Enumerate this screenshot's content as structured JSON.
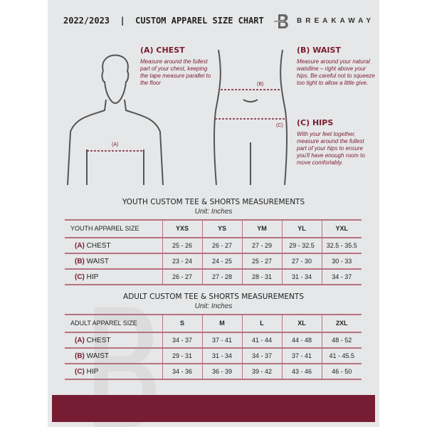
{
  "header": {
    "title": "2022/2023  |  CUSTOM APPAREL SIZE CHART",
    "brand": "BREAKAWAY",
    "logo_letter": "B"
  },
  "guides": {
    "chest": {
      "heading": "(A) CHEST",
      "text": "Measure around the fullest part of your chest, keeping the tape measure parallel to the floor",
      "marker": "(A)"
    },
    "waist": {
      "heading": "(B) WAIST",
      "text": "Measure around your natural waistline – right above your hips. Be careful not to squeeze too tight to allow a little give.",
      "marker": "(B)"
    },
    "hips": {
      "heading": "(C) HIPS",
      "text": "With your feet together, measure around the fullest part of your hips to ensure you'll have enough room to move comfortably.",
      "marker": "(C)"
    }
  },
  "youth": {
    "title": "YOUTH CUSTOM TEE & SHORTS MEASUREMENTS",
    "unit": "Unit: Inches",
    "header_label": "YOUTH APPAREL SIZE",
    "sizes": [
      "YXS",
      "YS",
      "YM",
      "YL",
      "YXL"
    ],
    "rows": [
      {
        "tag": "(A)",
        "name": "CHEST",
        "values": [
          "25 - 26",
          "26 - 27",
          "27 - 29",
          "29 - 32.5",
          "32.5 - 35.5"
        ]
      },
      {
        "tag": "(B)",
        "name": "WAIST",
        "values": [
          "23 - 24",
          "24 - 25",
          "25 - 27",
          "27 - 30",
          "30 - 33"
        ]
      },
      {
        "tag": "(C)",
        "name": "HIP",
        "values": [
          "26 - 27",
          "27 - 28",
          "28 - 31",
          "31 - 34",
          "34 - 37"
        ]
      }
    ]
  },
  "adult": {
    "title": "ADULT CUSTOM TEE & SHORTS MEASUREMENTS",
    "unit": "Unit: Inches",
    "header_label": "ADULT APPAREL SIZE",
    "sizes": [
      "S",
      "M",
      "L",
      "XL",
      "2XL"
    ],
    "rows": [
      {
        "tag": "(A)",
        "name": "CHEST",
        "values": [
          "34 - 37",
          "37 - 41",
          "41 - 44",
          "44 - 48",
          "48 - 52"
        ]
      },
      {
        "tag": "(B)",
        "name": "WAIST",
        "values": [
          "29 - 31",
          "31 - 34",
          "34 - 37",
          "37 - 41",
          "41 - 45.5"
        ]
      },
      {
        "tag": "(C)",
        "name": "HIP",
        "values": [
          "34 - 36",
          "36 - 39",
          "39 - 42",
          "43 - 46",
          "46 - 50"
        ]
      }
    ]
  },
  "colors": {
    "accent": "#771d33",
    "background": "#e6e7e8"
  }
}
